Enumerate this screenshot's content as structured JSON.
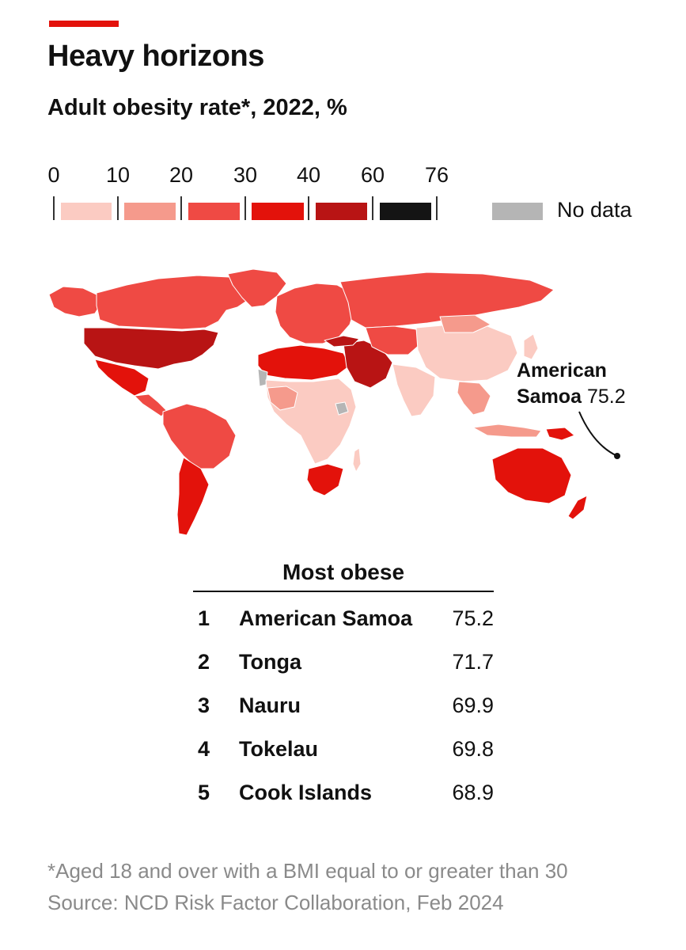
{
  "header": {
    "title": "Heavy horizons",
    "subtitle": "Adult obesity rate*, 2022, %"
  },
  "legend": {
    "ticks": [
      "0",
      "10",
      "20",
      "30",
      "40",
      "60",
      "76"
    ],
    "colors": [
      "#fbcbc2",
      "#f59a8c",
      "#ef4a44",
      "#e3120b",
      "#b81414",
      "#141414"
    ],
    "no_data_label": "No data",
    "no_data_color": "#b5b5b5"
  },
  "map": {
    "land_color_default": "#ef4a44",
    "annotation": {
      "name_line1": "American",
      "name_line2": "Samoa",
      "value": "75.2"
    }
  },
  "ranking": {
    "title": "Most obese",
    "rows": [
      {
        "rank": "1",
        "country": "American Samoa",
        "value": "75.2"
      },
      {
        "rank": "2",
        "country": "Tonga",
        "value": "71.7"
      },
      {
        "rank": "3",
        "country": "Nauru",
        "value": "69.9"
      },
      {
        "rank": "4",
        "country": "Tokelau",
        "value": "69.8"
      },
      {
        "rank": "5",
        "country": "Cook Islands",
        "value": "68.9"
      }
    ]
  },
  "footnote": {
    "note": "*Aged 18 and over with a BMI equal to or greater than 30",
    "source": "Source: NCD Risk Factor Collaboration, Feb 2024"
  }
}
